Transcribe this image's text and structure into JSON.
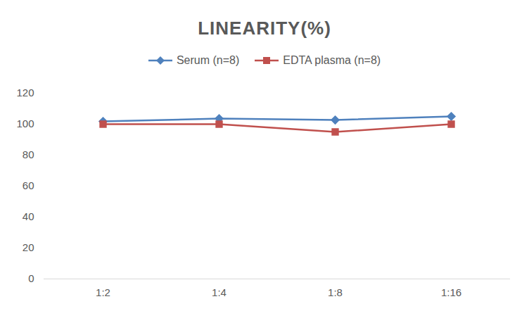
{
  "chart_data": {
    "type": "line",
    "title": "LINEARITY(%)",
    "categories": [
      "1:2",
      "1:4",
      "1:8",
      "1:16"
    ],
    "series": [
      {
        "name": "Serum (n=8)",
        "color": "#4f81bd",
        "marker": "diamond",
        "values": [
          101.8,
          103.6,
          102.7,
          105
        ]
      },
      {
        "name": "EDTA plasma (n=8)",
        "color": "#c0504d",
        "marker": "square",
        "values": [
          100,
          100,
          95,
          100
        ]
      }
    ],
    "ylim": [
      0,
      120
    ],
    "yticks": [
      0,
      20,
      40,
      60,
      80,
      100,
      120
    ],
    "grid": false,
    "legend": "top"
  }
}
